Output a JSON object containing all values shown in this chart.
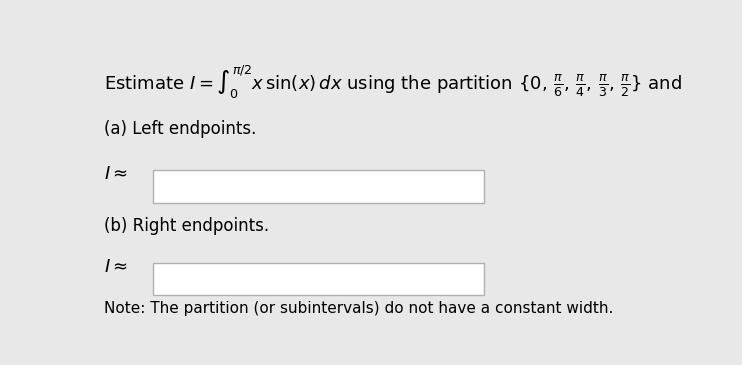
{
  "bg_color": "#e8e8e8",
  "box_color": "#ffffff",
  "box_border_color": "#b0b0b0",
  "title_text_color": "#000000",
  "label_color": "#000000",
  "note_color": "#000000",
  "note_text": "Note: The partition (or subintervals) do not have a constant width.",
  "figsize": [
    7.42,
    3.65
  ],
  "dpi": 100
}
